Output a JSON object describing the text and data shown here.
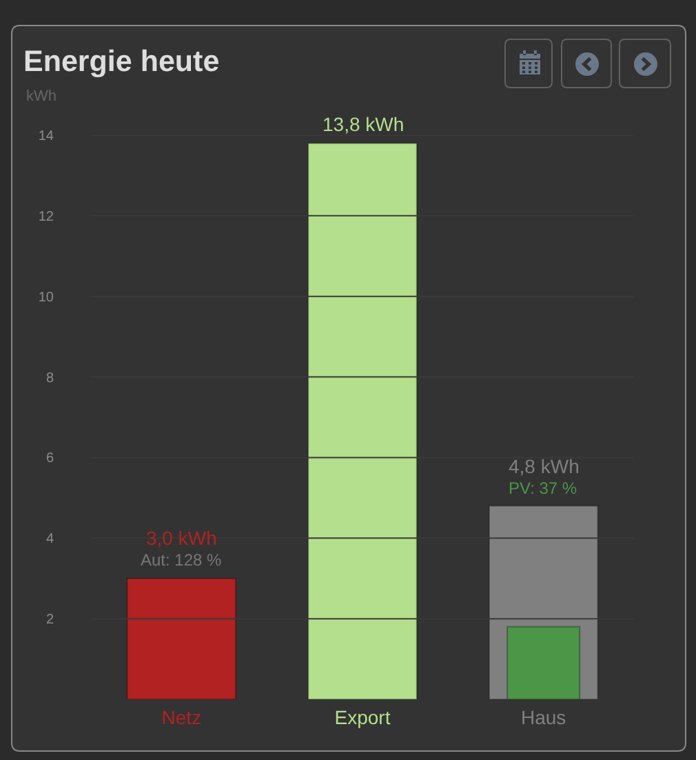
{
  "chart_data": {
    "type": "bar",
    "title": "Energie heute",
    "ylabel": "kWh",
    "categories": [
      "Netz",
      "Export",
      "Haus"
    ],
    "series": [
      {
        "values": [
          3.0,
          13.8,
          4.8
        ],
        "colors": [
          "#b22222",
          "#b4df8c",
          "#808080"
        ],
        "value_labels": [
          "3,0 kWh",
          "13,8 kWh",
          "4,8 kWh"
        ]
      },
      {
        "values": [
          null,
          null,
          1.8
        ],
        "color": "#4b9647"
      }
    ],
    "annotations": [
      {
        "text": "Aut: 128 %",
        "x": "Netz",
        "y": 3.0
      },
      {
        "text": "PV: 37 %",
        "x": "Haus",
        "y": 4.8
      }
    ],
    "ylim": [
      0,
      14
    ],
    "yticks": [
      2,
      4,
      6,
      8,
      10,
      12,
      14
    ],
    "grid": "y"
  }
}
